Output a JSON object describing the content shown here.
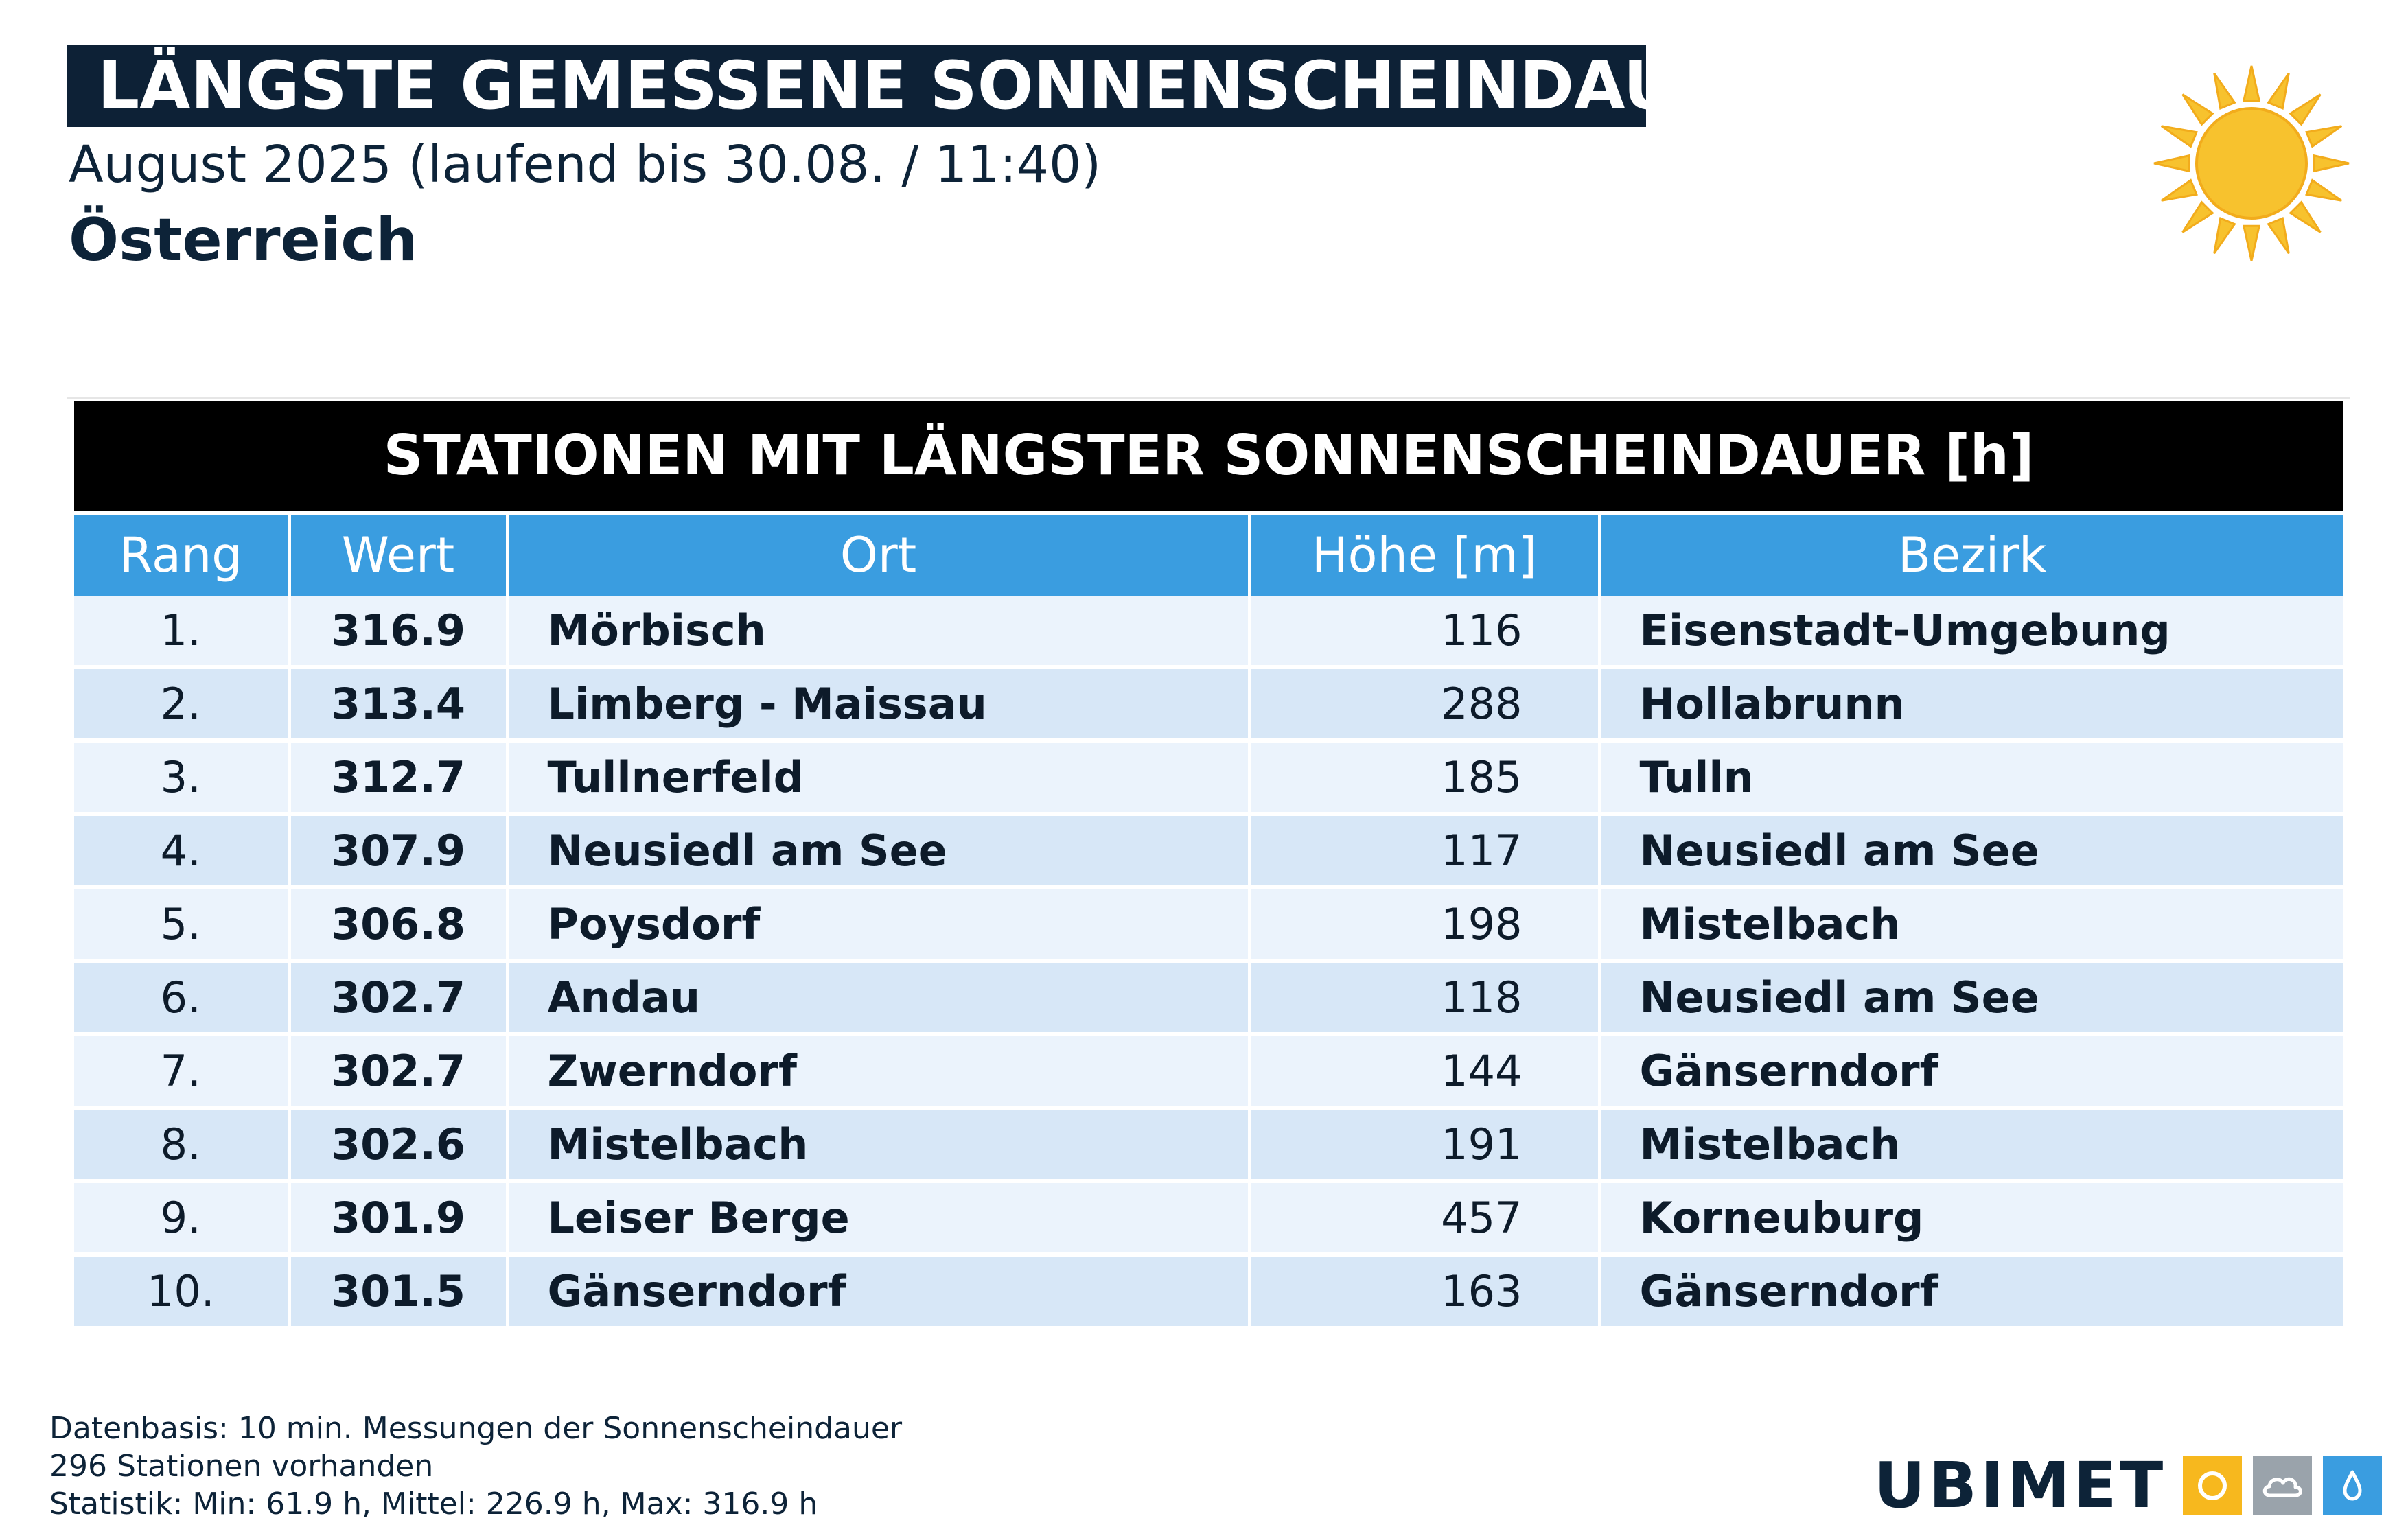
{
  "header": {
    "title": "LÄNGSTE GEMESSENE SONNENSCHEINDAUER",
    "subtitle": "August 2025 (laufend bis 30.08. / 11:40)",
    "region": "Österreich"
  },
  "table": {
    "title": "STATIONEN MIT LÄNGSTER SONNENSCHEINDAUER [h]",
    "columns": [
      "Rang",
      "Wert",
      "Ort",
      "Höhe [m]",
      "Bezirk"
    ],
    "rows": [
      [
        "1.",
        "316.9",
        "Mörbisch",
        "116",
        "Eisenstadt-Umgebung"
      ],
      [
        "2.",
        "313.4",
        "Limberg - Maissau",
        "288",
        "Hollabrunn"
      ],
      [
        "3.",
        "312.7",
        "Tullnerfeld",
        "185",
        "Tulln"
      ],
      [
        "4.",
        "307.9",
        "Neusiedl am See",
        "117",
        "Neusiedl am See"
      ],
      [
        "5.",
        "306.8",
        "Poysdorf",
        "198",
        "Mistelbach"
      ],
      [
        "6.",
        "302.7",
        "Andau",
        "118",
        "Neusiedl am See"
      ],
      [
        "7.",
        "302.7",
        "Zwerndorf",
        "144",
        "Gänserndorf"
      ],
      [
        "8.",
        "302.6",
        "Mistelbach",
        "191",
        "Mistelbach"
      ],
      [
        "9.",
        "301.9",
        "Leiser Berge",
        "457",
        "Korneuburg"
      ],
      [
        "10.",
        "301.5",
        "Gänserndorf",
        "163",
        "Gänserndorf"
      ]
    ]
  },
  "footer": {
    "line1": "Datenbasis: 10 min. Messungen der Sonnenscheindauer",
    "line2": "296 Stationen vorhanden",
    "line3": "Statistik: Min: 61.9 h, Mittel: 226.9 h, Max: 316.9 h"
  },
  "logo": {
    "text": "UBIMET",
    "icons": [
      "sun-icon",
      "cloud-icon",
      "drop-icon"
    ]
  },
  "colors": {
    "title_bg": "#0d2136",
    "header_blue": "#3a9de0",
    "row_light": "#ebf3fc",
    "row_dark": "#d7e7f7",
    "sun_yellow": "#f7c22e",
    "logo_yellow": "#f7b81e",
    "logo_grey": "#9aa3ab",
    "logo_blue": "#3a9de0"
  }
}
